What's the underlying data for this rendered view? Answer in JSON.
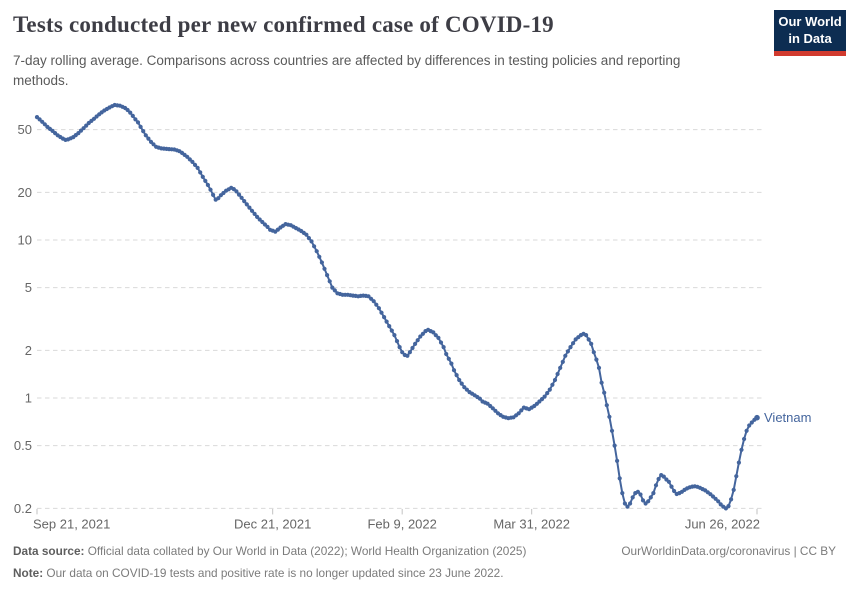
{
  "header": {
    "title": "Tests conducted per new confirmed case of COVID-19",
    "subtitle": "7-day rolling average. Comparisons across countries are affected by differences in testing policies and reporting methods.",
    "logo": {
      "line1": "Our World",
      "line2": "in Data",
      "bg_color": "#0d2d52",
      "accent_color": "#d13a2e"
    }
  },
  "footer": {
    "data_source_label": "Data source:",
    "data_source_text": " Official data collated by Our World in Data (2022); World Health Organization (2025)",
    "note_label": "Note:",
    "note_text": " Our data on COVID-19 tests and positive rate is no longer updated since 23 June 2022.",
    "link_text": "OurWorldinData.org/coronavirus | CC BY"
  },
  "chart_data": {
    "type": "line",
    "title": "Tests conducted per new confirmed case of COVID-19",
    "xlabel": "",
    "ylabel": "",
    "log_scale_y": true,
    "grid": "dashed-horizontal",
    "y_ticks": [
      "50",
      "20",
      "10",
      "5",
      "2",
      "1",
      "0.5",
      "0.2"
    ],
    "y_range": [
      0.19,
      75
    ],
    "x_ticks": [
      {
        "day": 0,
        "label": "Sep 21, 2021"
      },
      {
        "day": 91,
        "label": "Dec 21, 2021"
      },
      {
        "day": 141,
        "label": "Feb 9, 2022"
      },
      {
        "day": 191,
        "label": "Mar 31, 2022"
      },
      {
        "day": 278,
        "label": "Jun 26, 2022"
      }
    ],
    "x_unit": "days since Sep 21, 2021",
    "series": [
      {
        "name": "Vietnam",
        "color": "#44659d",
        "points": [
          [
            0,
            60
          ],
          [
            2,
            56
          ],
          [
            4,
            52
          ],
          [
            6,
            49
          ],
          [
            8,
            46
          ],
          [
            10,
            43.8
          ],
          [
            11,
            43
          ],
          [
            12,
            43.3
          ],
          [
            14,
            44.8
          ],
          [
            16,
            47.5
          ],
          [
            18,
            51
          ],
          [
            20,
            55
          ],
          [
            22,
            58.5
          ],
          [
            24,
            62.5
          ],
          [
            26,
            66
          ],
          [
            28,
            69
          ],
          [
            30,
            71.5
          ],
          [
            32,
            70.8
          ],
          [
            34,
            68.5
          ],
          [
            35,
            66.5
          ],
          [
            36,
            64
          ],
          [
            37,
            61
          ],
          [
            38,
            58
          ],
          [
            39,
            55.5
          ],
          [
            40,
            52
          ],
          [
            42,
            46
          ],
          [
            44,
            41.8
          ],
          [
            46,
            38.9
          ],
          [
            48,
            38
          ],
          [
            51,
            37.6
          ],
          [
            53,
            37.4
          ],
          [
            55,
            36.5
          ],
          [
            56,
            35.6
          ],
          [
            58,
            33.6
          ],
          [
            60,
            31.2
          ],
          [
            62,
            28.6
          ],
          [
            64,
            25.1
          ],
          [
            66,
            22.3
          ],
          [
            67,
            20.8
          ],
          [
            68,
            19.3
          ],
          [
            69,
            18
          ],
          [
            70,
            18.4
          ],
          [
            71,
            19.2
          ],
          [
            73,
            20.5
          ],
          [
            75,
            21.4
          ],
          [
            76,
            21
          ],
          [
            77,
            20.3
          ],
          [
            79,
            18.5
          ],
          [
            81,
            16.8
          ],
          [
            83,
            15.3
          ],
          [
            85,
            14
          ],
          [
            87,
            13
          ],
          [
            89,
            12.1
          ],
          [
            90,
            11.6
          ],
          [
            92,
            11.3
          ],
          [
            94,
            12
          ],
          [
            96,
            12.6
          ],
          [
            98,
            12.4
          ],
          [
            100,
            11.9
          ],
          [
            102,
            11.4
          ],
          [
            104,
            10.8
          ],
          [
            106,
            9.8
          ],
          [
            108,
            8.5
          ],
          [
            110,
            7.2
          ],
          [
            112,
            6
          ],
          [
            114,
            5
          ],
          [
            116,
            4.6
          ],
          [
            118,
            4.5
          ],
          [
            120,
            4.5
          ],
          [
            122,
            4.45
          ],
          [
            124,
            4.4
          ],
          [
            126,
            4.45
          ],
          [
            128,
            4.4
          ],
          [
            130,
            4.1
          ],
          [
            132,
            3.7
          ],
          [
            134,
            3.25
          ],
          [
            136,
            2.85
          ],
          [
            138,
            2.5
          ],
          [
            140,
            2.1
          ],
          [
            141,
            1.95
          ],
          [
            142,
            1.87
          ],
          [
            143,
            1.85
          ],
          [
            144,
            1.95
          ],
          [
            146,
            2.2
          ],
          [
            148,
            2.45
          ],
          [
            150,
            2.65
          ],
          [
            151,
            2.7
          ],
          [
            153,
            2.6
          ],
          [
            155,
            2.4
          ],
          [
            157,
            2.1
          ],
          [
            158,
            1.9
          ],
          [
            160,
            1.65
          ],
          [
            161,
            1.5
          ],
          [
            163,
            1.3
          ],
          [
            165,
            1.17
          ],
          [
            167,
            1.09
          ],
          [
            169,
            1.04
          ],
          [
            171,
            0.99
          ],
          [
            172,
            0.95
          ],
          [
            174,
            0.92
          ],
          [
            176,
            0.86
          ],
          [
            178,
            0.8
          ],
          [
            180,
            0.76
          ],
          [
            182,
            0.745
          ],
          [
            184,
            0.755
          ],
          [
            186,
            0.8
          ],
          [
            188,
            0.87
          ],
          [
            190,
            0.85
          ],
          [
            192,
            0.89
          ],
          [
            194,
            0.95
          ],
          [
            196,
            1.02
          ],
          [
            198,
            1.13
          ],
          [
            200,
            1.3
          ],
          [
            202,
            1.55
          ],
          [
            204,
            1.85
          ],
          [
            206,
            2.1
          ],
          [
            208,
            2.35
          ],
          [
            210,
            2.5
          ],
          [
            211,
            2.55
          ],
          [
            212,
            2.5
          ],
          [
            214,
            2.2
          ],
          [
            215,
            1.95
          ],
          [
            216,
            1.75
          ],
          [
            217,
            1.55
          ],
          [
            218,
            1.25
          ],
          [
            219,
            1.08
          ],
          [
            220,
            0.9
          ],
          [
            221,
            0.76
          ],
          [
            222,
            0.62
          ],
          [
            223,
            0.5
          ],
          [
            224,
            0.4
          ],
          [
            225,
            0.31
          ],
          [
            226,
            0.25
          ],
          [
            227,
            0.215
          ],
          [
            228,
            0.205
          ],
          [
            229,
            0.215
          ],
          [
            230,
            0.235
          ],
          [
            231,
            0.25
          ],
          [
            232,
            0.255
          ],
          [
            233,
            0.245
          ],
          [
            234,
            0.225
          ],
          [
            235,
            0.215
          ],
          [
            236,
            0.222
          ],
          [
            237,
            0.235
          ],
          [
            238,
            0.25
          ],
          [
            239,
            0.28
          ],
          [
            240,
            0.307
          ],
          [
            241,
            0.325
          ],
          [
            242,
            0.318
          ],
          [
            243,
            0.305
          ],
          [
            244,
            0.295
          ],
          [
            245,
            0.275
          ],
          [
            246,
            0.258
          ],
          [
            247,
            0.247
          ],
          [
            248,
            0.25
          ],
          [
            249,
            0.255
          ],
          [
            250,
            0.262
          ],
          [
            251,
            0.268
          ],
          [
            252,
            0.272
          ],
          [
            253,
            0.275
          ],
          [
            254,
            0.276
          ],
          [
            255,
            0.274
          ],
          [
            256,
            0.27
          ],
          [
            257,
            0.265
          ],
          [
            258,
            0.26
          ],
          [
            259,
            0.253
          ],
          [
            260,
            0.246
          ],
          [
            261,
            0.238
          ],
          [
            262,
            0.23
          ],
          [
            263,
            0.222
          ],
          [
            264,
            0.212
          ],
          [
            265,
            0.205
          ],
          [
            266,
            0.2
          ],
          [
            267,
            0.207
          ],
          [
            268,
            0.228
          ],
          [
            269,
            0.262
          ],
          [
            270,
            0.32
          ],
          [
            271,
            0.39
          ],
          [
            272,
            0.47
          ],
          [
            273,
            0.55
          ],
          [
            274,
            0.62
          ],
          [
            275,
            0.67
          ],
          [
            276,
            0.7
          ],
          [
            277,
            0.728
          ],
          [
            278,
            0.75
          ]
        ]
      }
    ]
  }
}
